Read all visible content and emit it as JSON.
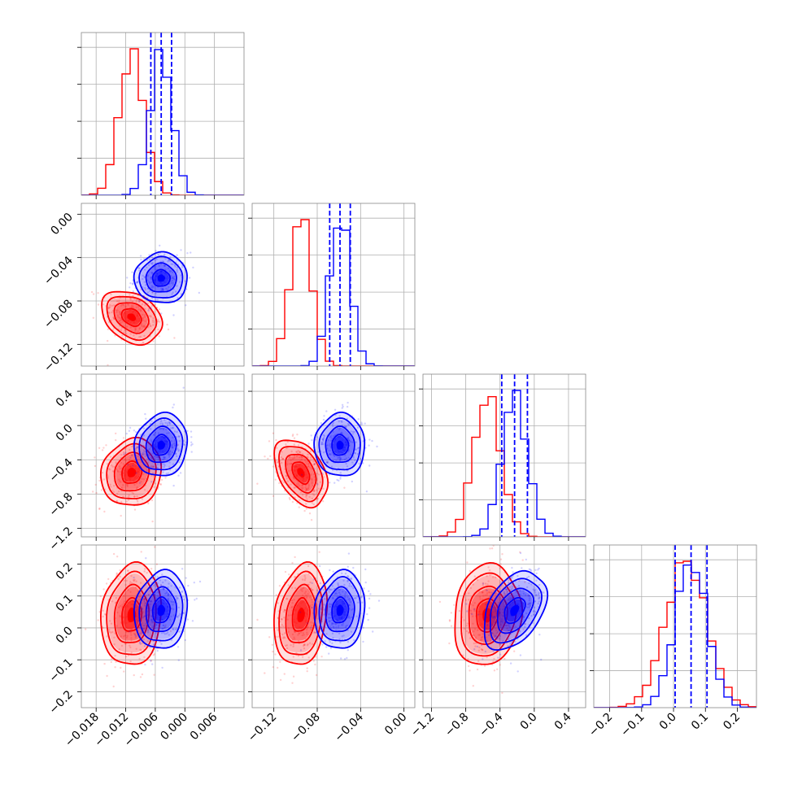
{
  "chart_data": {
    "type": "corner",
    "title": "",
    "parameters": [
      {
        "range": [
          -0.021,
          0.012
        ],
        "ticks": [
          -0.018,
          -0.012,
          -0.006,
          0.0,
          0.006
        ],
        "tick_labels": [
          "−0.018",
          "−0.012",
          "−0.006",
          "0.000",
          "0.006"
        ]
      },
      {
        "range": [
          -0.14,
          0.01
        ],
        "ticks": [
          -0.12,
          -0.08,
          -0.04,
          0.0
        ],
        "tick_labels": [
          "−0.12",
          "−0.08",
          "−0.04",
          "0.00"
        ]
      },
      {
        "range": [
          -1.3,
          0.6
        ],
        "ticks": [
          -1.2,
          -0.8,
          -0.4,
          0.0,
          0.4
        ],
        "tick_labels": [
          "−1.2",
          "−0.8",
          "−0.4",
          "0.0",
          "0.4"
        ]
      },
      {
        "range": [
          -0.25,
          0.26
        ],
        "ticks": [
          -0.2,
          -0.1,
          0.0,
          0.1,
          0.2
        ],
        "tick_labels": [
          "−0.2",
          "−0.1",
          "0.0",
          "0.1",
          "0.2"
        ]
      }
    ],
    "series": [
      {
        "color": "#ff0000",
        "mean": [
          -0.0108,
          -0.095,
          -0.55,
          0.04
        ],
        "std": [
          0.0025,
          0.01,
          0.16,
          0.065
        ],
        "corr": [
          [
            1,
            -0.3,
            0.1,
            0.1
          ],
          [
            -0.3,
            1,
            -0.4,
            0.2
          ],
          [
            0.1,
            -0.4,
            1,
            0.1
          ],
          [
            0.1,
            0.2,
            0.1,
            1
          ]
        ]
      },
      {
        "color": "#0000ff",
        "mean": [
          -0.0048,
          -0.059,
          -0.23,
          0.055
        ],
        "std": [
          0.0022,
          0.0095,
          0.15,
          0.05
        ],
        "corr": [
          [
            1,
            0.0,
            0.1,
            0.1
          ],
          [
            0.0,
            1,
            0.0,
            0.1
          ],
          [
            0.1,
            0.0,
            1,
            0.4
          ],
          [
            0.1,
            0.1,
            0.4,
            1
          ]
        ]
      }
    ],
    "quantile_lines": {
      "color": "#0000ff",
      "values": [
        [
          -0.0069,
          -0.0048,
          -0.0027
        ],
        [
          -0.0685,
          -0.059,
          -0.0495
        ],
        [
          -0.38,
          -0.23,
          -0.08
        ],
        [
          0.005,
          0.055,
          0.105
        ]
      ]
    },
    "grid": true
  }
}
